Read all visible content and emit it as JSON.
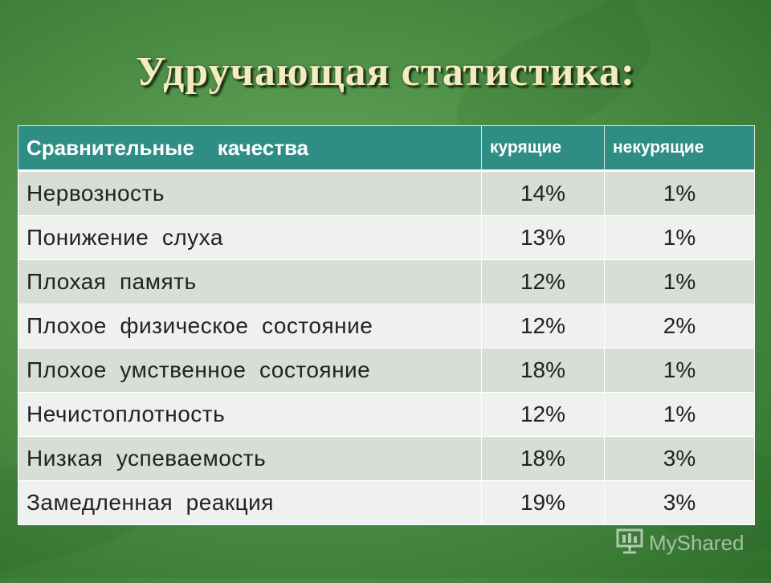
{
  "title": "Удручающая статистика:",
  "table": {
    "headers": [
      "Сравнительные    качества",
      "курящие",
      "некурящие"
    ],
    "rows": [
      {
        "quality": "Нервозность",
        "smokers": "14%",
        "nonsmokers": "1%"
      },
      {
        "quality": "Понижение  слуха",
        "smokers": "13%",
        "nonsmokers": "1%"
      },
      {
        "quality": "Плохая  память",
        "smokers": "12%",
        "nonsmokers": "1%"
      },
      {
        "quality": "Плохое  физическое  состояние",
        "smokers": "12%",
        "nonsmokers": "2%"
      },
      {
        "quality": "Плохое  умственное  состояние",
        "smokers": "18%",
        "nonsmokers": "1%"
      },
      {
        "quality": "Нечистоплотность",
        "smokers": "12%",
        "nonsmokers": "1%"
      },
      {
        "quality": "Низкая  успеваемость",
        "smokers": "18%",
        "nonsmokers": "3%"
      },
      {
        "quality": "Замедленная  реакция",
        "smokers": "19%",
        "nonsmokers": "3%"
      }
    ]
  },
  "watermark": {
    "text": "MyShared",
    "icon": "presentation-board-icon"
  },
  "colors": {
    "header": "#2f8e84",
    "title": "#f2ecc0",
    "background": "#4f9148"
  }
}
